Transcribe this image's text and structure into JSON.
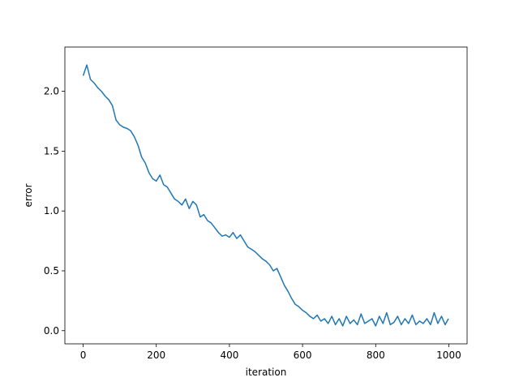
{
  "chart_data": {
    "type": "line",
    "x_label": "iteration",
    "y_label": "error",
    "x": [
      0,
      10,
      20,
      30,
      40,
      50,
      60,
      70,
      80,
      90,
      100,
      110,
      120,
      130,
      140,
      150,
      160,
      170,
      180,
      190,
      200,
      210,
      220,
      230,
      240,
      250,
      260,
      270,
      280,
      290,
      300,
      310,
      320,
      330,
      340,
      350,
      360,
      370,
      380,
      390,
      400,
      410,
      420,
      430,
      440,
      450,
      460,
      470,
      480,
      490,
      500,
      510,
      520,
      530,
      540,
      550,
      560,
      570,
      580,
      590,
      600,
      610,
      620,
      630,
      640,
      650,
      660,
      670,
      680,
      690,
      700,
      710,
      720,
      730,
      740,
      750,
      760,
      770,
      780,
      790,
      800,
      810,
      820,
      830,
      840,
      850,
      860,
      870,
      880,
      890,
      900,
      910,
      920,
      930,
      940,
      950,
      960,
      970,
      980,
      990,
      999
    ],
    "series": [
      {
        "color": "#1f77b4",
        "values": [
          2.13,
          2.22,
          2.1,
          2.07,
          2.03,
          2.0,
          1.96,
          1.93,
          1.88,
          1.76,
          1.72,
          1.7,
          1.69,
          1.67,
          1.62,
          1.55,
          1.45,
          1.4,
          1.32,
          1.27,
          1.25,
          1.3,
          1.22,
          1.2,
          1.15,
          1.1,
          1.08,
          1.05,
          1.1,
          1.02,
          1.08,
          1.05,
          0.95,
          0.97,
          0.92,
          0.9,
          0.86,
          0.82,
          0.79,
          0.8,
          0.78,
          0.82,
          0.77,
          0.8,
          0.75,
          0.7,
          0.68,
          0.66,
          0.63,
          0.6,
          0.58,
          0.55,
          0.5,
          0.52,
          0.45,
          0.38,
          0.33,
          0.27,
          0.22,
          0.2,
          0.17,
          0.15,
          0.12,
          0.1,
          0.13,
          0.08,
          0.1,
          0.06,
          0.12,
          0.05,
          0.1,
          0.04,
          0.12,
          0.06,
          0.09,
          0.05,
          0.14,
          0.06,
          0.08,
          0.1,
          0.04,
          0.12,
          0.06,
          0.15,
          0.05,
          0.07,
          0.12,
          0.05,
          0.1,
          0.06,
          0.13,
          0.05,
          0.08,
          0.06,
          0.1,
          0.05,
          0.15,
          0.06,
          0.12,
          0.05,
          0.1
        ]
      }
    ],
    "xlim": [
      -50,
      1050
    ],
    "ylim": [
      -0.11,
      2.37
    ],
    "xticks": [
      0,
      200,
      400,
      600,
      800,
      1000
    ],
    "yticks": [
      {
        "value": 0,
        "label": "0.0"
      },
      {
        "value": 0.5,
        "label": "0.5"
      },
      {
        "value": 1,
        "label": "1.0"
      },
      {
        "value": 1.5,
        "label": "1.5"
      },
      {
        "value": 2,
        "label": "2.0"
      }
    ]
  }
}
